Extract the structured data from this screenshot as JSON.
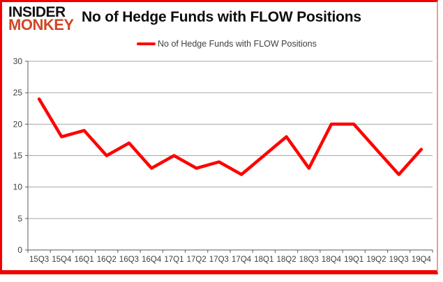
{
  "brand": {
    "line1": "INSIDER",
    "line2": "MONKEY"
  },
  "header": {
    "title": "No of Hedge Funds with FLOW Positions"
  },
  "legend": {
    "label": "No of Hedge Funds with FLOW Positions"
  },
  "colors": {
    "line_red": "#ff0000",
    "border_red": "#f20000",
    "border_red_light": "#f09a9a",
    "logo_red": "#d04727",
    "grid_gray": "#a6a6a6",
    "axis_gray": "#595959",
    "tick_label": "#404040",
    "title_black": "#0d0d0d"
  },
  "chart_data": {
    "type": "line",
    "title": "No of Hedge Funds with FLOW Positions",
    "categories": [
      "15Q3",
      "15Q4",
      "16Q1",
      "16Q2",
      "16Q3",
      "16Q4",
      "17Q1",
      "17Q2",
      "17Q3",
      "17Q4",
      "18Q1",
      "18Q2",
      "18Q3",
      "18Q4",
      "19Q1",
      "19Q2",
      "19Q3",
      "19Q4"
    ],
    "series": [
      {
        "name": "No of Hedge Funds with FLOW Positions",
        "values": [
          24,
          18,
          19,
          15,
          17,
          13,
          15,
          13,
          14,
          12,
          15,
          18,
          13,
          20,
          20,
          16,
          12,
          16
        ],
        "color": "#ff0000"
      }
    ],
    "xlabel": "",
    "ylabel": "",
    "ylim": [
      0,
      30
    ],
    "yticks": [
      0,
      5,
      10,
      15,
      20,
      25,
      30
    ],
    "grid": true,
    "legend_position": "top-center"
  }
}
